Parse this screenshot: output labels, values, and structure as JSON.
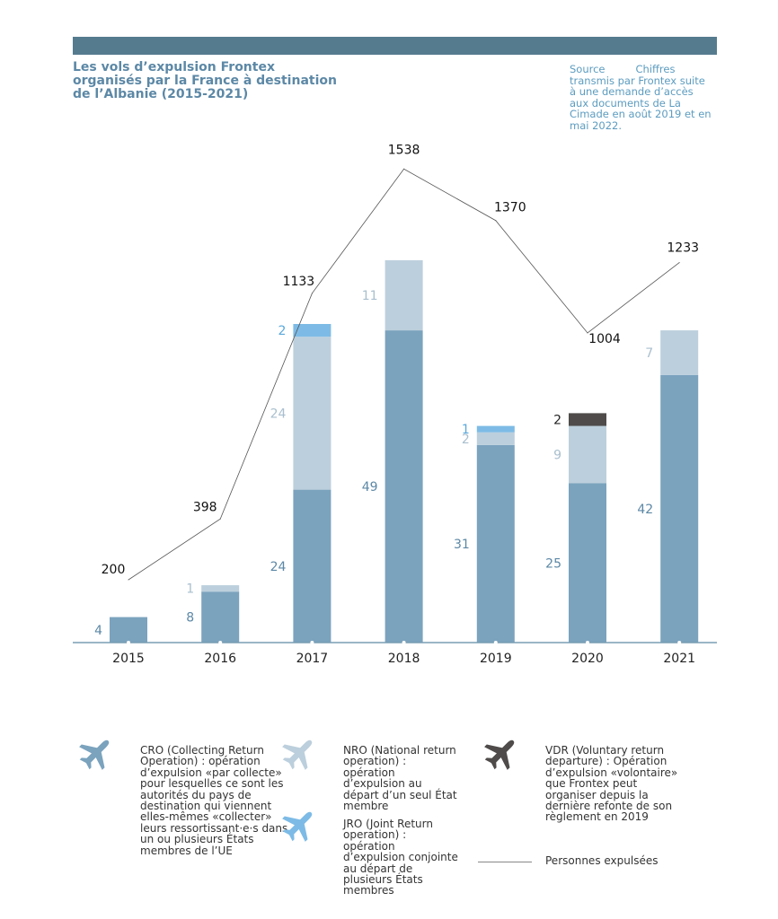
{
  "title": "Les vols d’expulsion Frontex organisés par la France à destination de l’Albanie (2015-2021)",
  "source": {
    "label": "Source",
    "text": "Chiffres transmis par Frontex suite à une demande d’accès aux documents de La Cimade en août 2019 et en mai 2022."
  },
  "colors": {
    "band": "#557b8f",
    "title": "#5c88a6",
    "source": "#5c9cc0",
    "cro": "#7ba3be",
    "nro": "#bccfdc",
    "jro": "#7dbbe6",
    "vdr": "#4e4b4a",
    "line": "#555555",
    "axis": "#7a9db4"
  },
  "chart_data": {
    "type": "bar",
    "stacked": true,
    "categories": [
      "2015",
      "2016",
      "2017",
      "2018",
      "2019",
      "2020",
      "2021"
    ],
    "series": [
      {
        "name": "CRO",
        "key": "cro",
        "values": [
          4,
          8,
          24,
          49,
          31,
          25,
          42
        ]
      },
      {
        "name": "NRO",
        "key": "nro",
        "values": [
          0,
          1,
          24,
          11,
          2,
          9,
          7
        ]
      },
      {
        "name": "JRO",
        "key": "jro",
        "values": [
          0,
          0,
          2,
          0,
          1,
          0,
          0
        ]
      },
      {
        "name": "VDR",
        "key": "vdr",
        "values": [
          0,
          0,
          0,
          0,
          0,
          2,
          0
        ]
      }
    ],
    "line": {
      "name": "Personnes expulsées",
      "values": [
        200,
        398,
        1133,
        1538,
        1370,
        1004,
        1233
      ]
    },
    "grid": false
  },
  "legend": {
    "cro": {
      "text": "CRO (Collecting Return Operation) : opération d’expulsion «par collecte» pour lesquelles ce sont les autorités du pays de destination qui viennent elles-mêmes «collecter» leurs ressortissant·e·s dans un ou plusieurs États membres de l’UE",
      "icon": "plane-icon"
    },
    "nro": {
      "text": "NRO (National return operation) : opération d’expulsion au départ d’un seul État membre",
      "icon": "plane-icon"
    },
    "jro": {
      "text": "JRO (Joint Return operation) : opération d’expulsion conjointe au départ de plusieurs États membres",
      "icon": "plane-icon"
    },
    "vdr": {
      "text": "VDR (Voluntary return departure) : Opération d’expulsion «volontaire» que Frontex peut organiser depuis la dernière refonte de son règlement en 2019",
      "icon": "plane-icon"
    },
    "line": {
      "text": "Personnes expulsées"
    }
  }
}
